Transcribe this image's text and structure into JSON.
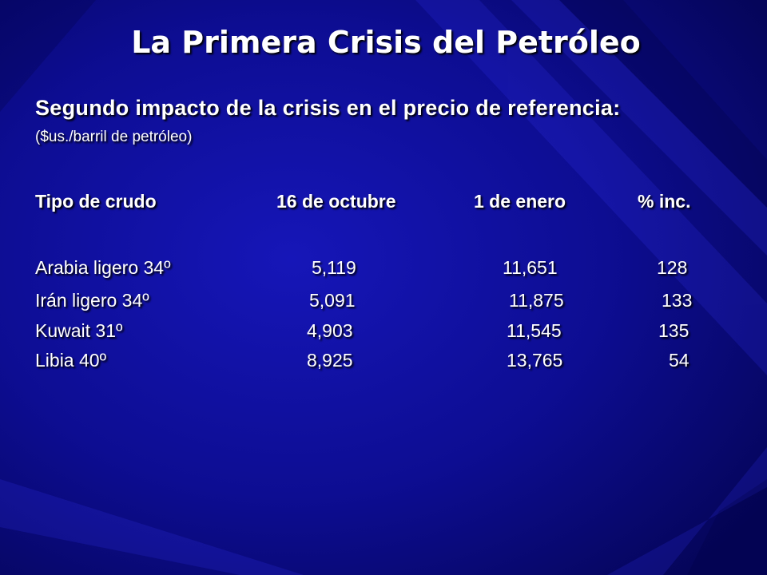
{
  "slide": {
    "title": "La Primera Crisis del Petróleo",
    "subtitle": "Segundo impacto de la crisis en el precio de referencia:",
    "unit_note": "($us./barril de petróleo)"
  },
  "table": {
    "headers": [
      "Tipo de crudo",
      "16 de octubre",
      "1 de enero",
      "% inc."
    ],
    "rows": [
      [
        "Arabia ligero 34º",
        "5,119",
        "11,651",
        "128"
      ],
      [
        "Irán ligero 34º",
        "5,091",
        "11,875",
        "133"
      ],
      [
        "Kuwait 31º",
        "4,903",
        "11,545",
        "135"
      ],
      [
        "Libia 40º",
        "8,925",
        "13,765",
        "54"
      ]
    ]
  },
  "colors": {
    "background_dark": "#05054f",
    "background_mid": "#1010a8",
    "text": "#ffffff"
  }
}
